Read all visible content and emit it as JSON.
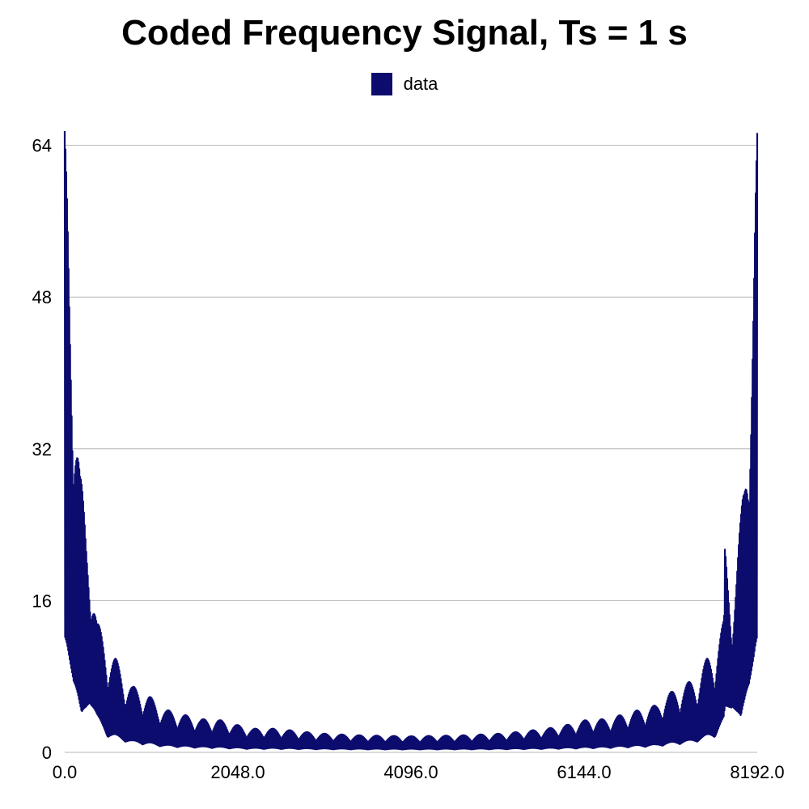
{
  "chart_data": {
    "type": "line",
    "title": "Coded Frequency Signal, Ts = 1 s",
    "xlabel": "",
    "ylabel": "",
    "xlim": [
      0,
      8192
    ],
    "ylim": [
      0,
      65.5
    ],
    "grid": "horizontal",
    "legend_position": "top-center",
    "x_ticks": [
      {
        "value": 0,
        "label": "0.0"
      },
      {
        "value": 2048,
        "label": "2048.0"
      },
      {
        "value": 4096,
        "label": "4096.0"
      },
      {
        "value": 6144,
        "label": "6144.0"
      },
      {
        "value": 8192,
        "label": "8192.0"
      }
    ],
    "y_ticks": [
      {
        "value": 0,
        "label": "0"
      },
      {
        "value": 16,
        "label": "16"
      },
      {
        "value": 32,
        "label": "32"
      },
      {
        "value": 48,
        "label": "48"
      },
      {
        "value": 64,
        "label": "64"
      }
    ],
    "series": [
      {
        "name": "data",
        "color": "#0c0c6e",
        "peak_envelope": {
          "x": [
            0,
            30,
            60,
            100,
            140,
            180,
            250,
            300,
            380,
            500,
            600,
            700,
            800,
            900,
            1000,
            1100,
            1200,
            1400,
            1600,
            1800,
            2000,
            2200,
            2500,
            3000,
            3500,
            4096,
            4700,
            5200,
            5700,
            6000,
            6200,
            6400,
            6600,
            6800,
            7000,
            7100,
            7200,
            7300,
            7400,
            7500,
            7600,
            7700,
            7800,
            7810,
            7900,
            7950,
            8000,
            8040,
            8080,
            8120,
            8150,
            8170,
            8192
          ],
          "y": [
            65.5,
            60,
            53,
            46,
            38,
            30,
            24,
            22,
            14,
            11,
            10,
            8,
            7,
            6.5,
            6,
            5,
            4.5,
            4,
            3.5,
            3.5,
            3,
            2.5,
            2.5,
            2,
            1.8,
            1.7,
            1.8,
            2,
            2.5,
            3,
            3.5,
            3.5,
            4,
            4.5,
            5,
            6,
            6.5,
            7,
            7.5,
            8,
            10,
            11,
            14,
            22,
            16,
            20,
            25,
            30,
            38,
            46,
            53,
            60,
            65.5
          ]
        },
        "trough_envelope": {
          "x": [
            0,
            100,
            200,
            300,
            500,
            800,
            1200,
            2000,
            4096,
            6200,
            7000,
            7400,
            7700,
            7900,
            8000,
            8100,
            8192
          ],
          "y": [
            5,
            5,
            1,
            4,
            1,
            0.5,
            0.3,
            0.2,
            0.2,
            0.2,
            0.3,
            0.5,
            1,
            4,
            1,
            5,
            5
          ]
        }
      }
    ]
  }
}
